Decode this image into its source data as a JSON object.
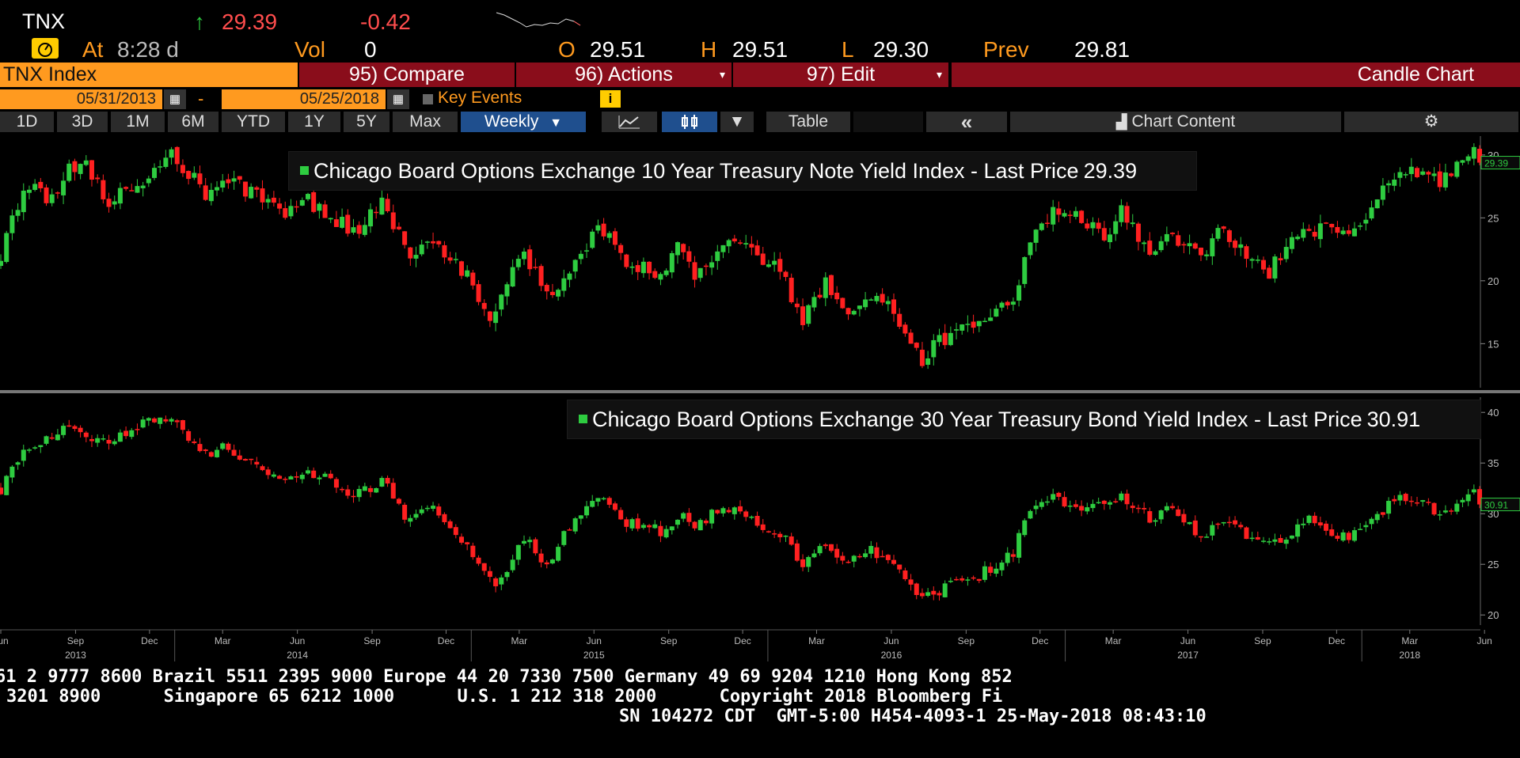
{
  "header": {
    "ticker": "TNX",
    "arrow": "↑",
    "last": "29.39",
    "change": "-0.42",
    "at_label": "At",
    "time": "8:28 d",
    "vol_label": "Vol",
    "vol": "0",
    "open_label": "O",
    "open": "29.51",
    "high_label": "H",
    "high": "29.51",
    "low_label": "L",
    "low": "29.30",
    "prev_label": "Prev",
    "prev": "29.81"
  },
  "toolbar": {
    "security": "TNX Index",
    "compare": "95) Compare",
    "actions": "96) Actions",
    "edit": "97) Edit",
    "chart_type": "Candle Chart",
    "start_date": "05/31/2013",
    "dash": "-",
    "end_date": "05/25/2018",
    "key_events": "Key Events",
    "ranges": [
      "1D",
      "3D",
      "1M",
      "6M",
      "YTD",
      "1Y",
      "5Y",
      "Max"
    ],
    "period": "Weekly",
    "table": "Table",
    "collapse": "«",
    "chart_content": "Chart Content"
  },
  "colors": {
    "up": "#2ecc40",
    "down": "#ff2020",
    "accent": "#ff9a1f",
    "button_red": "#8a0d1b",
    "selected_blue": "#1f4f8e"
  },
  "chart_data": [
    {
      "type": "candlestick",
      "title": "Chicago Board Options Exchange 10 Year Treasury Note Yield Index - Last Price",
      "last_price": "29.39",
      "frequency": "weekly",
      "date_range": [
        "2013-05-31",
        "2018-05-25"
      ],
      "ylim": [
        11.5,
        31.5
      ],
      "yticks": [
        15,
        20,
        25,
        30
      ],
      "ytick_labels": [
        "15",
        "20",
        "25",
        "30"
      ],
      "axis_side": "right",
      "anchors": [
        [
          "2013-06-01",
          21.3
        ],
        [
          "2013-06-15",
          25.5
        ],
        [
          "2013-07-05",
          27.5
        ],
        [
          "2013-08-01",
          26.5
        ],
        [
          "2013-08-23",
          28.8
        ],
        [
          "2013-09-13",
          29.6
        ],
        [
          "2013-10-10",
          26.4
        ],
        [
          "2013-11-08",
          27.0
        ],
        [
          "2013-12-20",
          29.5
        ],
        [
          "2013-12-31",
          30.0
        ],
        [
          "2014-01-20",
          28.4
        ],
        [
          "2014-02-07",
          26.7
        ],
        [
          "2014-03-07",
          27.9
        ],
        [
          "2014-04-11",
          26.7
        ],
        [
          "2014-05-16",
          25.3
        ],
        [
          "2014-06-06",
          26.7
        ],
        [
          "2014-07-18",
          24.8
        ],
        [
          "2014-08-15",
          23.8
        ],
        [
          "2014-09-12",
          26.2
        ],
        [
          "2014-10-15",
          22.1
        ],
        [
          "2014-11-07",
          23.5
        ],
        [
          "2014-12-12",
          21.8
        ],
        [
          "2015-01-30",
          16.8
        ],
        [
          "2015-02-20",
          21.0
        ],
        [
          "2015-03-06",
          22.5
        ],
        [
          "2015-04-03",
          18.8
        ],
        [
          "2015-05-01",
          20.5
        ],
        [
          "2015-06-10",
          24.3
        ],
        [
          "2015-07-08",
          21.8
        ],
        [
          "2015-08-21",
          20.5
        ],
        [
          "2015-09-15",
          22.9
        ],
        [
          "2015-10-02",
          19.9
        ],
        [
          "2015-11-06",
          23.2
        ],
        [
          "2015-12-11",
          22.3
        ],
        [
          "2016-01-22",
          20.5
        ],
        [
          "2016-02-11",
          16.6
        ],
        [
          "2016-03-11",
          19.8
        ],
        [
          "2016-04-08",
          17.2
        ],
        [
          "2016-04-29",
          18.3
        ],
        [
          "2016-05-20",
          18.5
        ],
        [
          "2016-06-24",
          15.6
        ],
        [
          "2016-07-08",
          13.7
        ],
        [
          "2016-07-29",
          15.0
        ],
        [
          "2016-09-09",
          16.8
        ],
        [
          "2016-10-28",
          18.5
        ],
        [
          "2016-11-11",
          21.5
        ],
        [
          "2016-12-16",
          26.0
        ],
        [
          "2017-01-20",
          24.7
        ],
        [
          "2017-02-24",
          23.3
        ],
        [
          "2017-03-10",
          26.0
        ],
        [
          "2017-04-14",
          22.3
        ],
        [
          "2017-05-12",
          23.9
        ],
        [
          "2017-06-16",
          21.6
        ],
        [
          "2017-07-07",
          23.9
        ],
        [
          "2017-08-18",
          21.9
        ],
        [
          "2017-09-08",
          20.6
        ],
        [
          "2017-10-06",
          23.6
        ],
        [
          "2017-11-10",
          24.0
        ],
        [
          "2017-12-08",
          23.7
        ],
        [
          "2018-01-12",
          25.5
        ],
        [
          "2018-02-09",
          28.5
        ],
        [
          "2018-02-23",
          29.0
        ],
        [
          "2018-03-23",
          28.2
        ],
        [
          "2018-04-06",
          27.7
        ],
        [
          "2018-05-04",
          29.5
        ],
        [
          "2018-05-18",
          30.6
        ],
        [
          "2018-05-25",
          29.39
        ]
      ]
    },
    {
      "type": "candlestick",
      "title": "Chicago Board Options Exchange 30 Year Treasury Bond Yield Index - Last Price",
      "last_price": "30.91",
      "frequency": "weekly",
      "date_range": [
        "2013-05-31",
        "2018-05-25"
      ],
      "ylim": [
        19.0,
        41.5
      ],
      "yticks": [
        20,
        25,
        30,
        35,
        40
      ],
      "ytick_labels": [
        "20",
        "25",
        "30",
        "35",
        "40"
      ],
      "axis_side": "right",
      "anchors": [
        [
          "2013-06-01",
          32.5
        ],
        [
          "2013-06-21",
          35.5
        ],
        [
          "2013-07-12",
          37.0
        ],
        [
          "2013-08-09",
          38.0
        ],
        [
          "2013-08-23",
          39.0
        ],
        [
          "2013-09-20",
          37.5
        ],
        [
          "2013-10-11",
          36.8
        ],
        [
          "2013-11-08",
          38.3
        ],
        [
          "2013-12-13",
          39.5
        ],
        [
          "2013-12-31",
          39.2
        ],
        [
          "2014-01-24",
          36.5
        ],
        [
          "2014-02-07",
          36.0
        ],
        [
          "2014-03-07",
          36.5
        ],
        [
          "2014-04-11",
          34.8
        ],
        [
          "2014-05-16",
          33.2
        ],
        [
          "2014-06-06",
          34.3
        ],
        [
          "2014-07-18",
          33.0
        ],
        [
          "2014-08-15",
          31.8
        ],
        [
          "2014-09-12",
          33.3
        ],
        [
          "2014-10-15",
          29.5
        ],
        [
          "2014-11-07",
          30.8
        ],
        [
          "2014-12-12",
          28.3
        ],
        [
          "2015-01-30",
          22.8
        ],
        [
          "2015-02-27",
          26.5
        ],
        [
          "2015-03-13",
          27.5
        ],
        [
          "2015-04-03",
          25.0
        ],
        [
          "2015-05-08",
          29.5
        ],
        [
          "2015-06-10",
          31.8
        ],
        [
          "2015-07-10",
          29.0
        ],
        [
          "2015-08-21",
          28.3
        ],
        [
          "2015-09-15",
          29.8
        ],
        [
          "2015-10-02",
          28.3
        ],
        [
          "2015-11-06",
          30.8
        ],
        [
          "2015-12-11",
          29.3
        ],
        [
          "2016-01-22",
          28.0
        ],
        [
          "2016-02-11",
          25.0
        ],
        [
          "2016-03-11",
          27.0
        ],
        [
          "2016-04-08",
          25.5
        ],
        [
          "2016-05-06",
          26.5
        ],
        [
          "2016-06-10",
          25.0
        ],
        [
          "2016-07-08",
          21.5
        ],
        [
          "2016-07-29",
          22.5
        ],
        [
          "2016-09-09",
          23.5
        ],
        [
          "2016-10-28",
          26.0
        ],
        [
          "2016-11-11",
          29.5
        ],
        [
          "2016-12-16",
          31.8
        ],
        [
          "2017-01-20",
          30.0
        ],
        [
          "2017-03-10",
          31.8
        ],
        [
          "2017-04-14",
          29.5
        ],
        [
          "2017-05-12",
          30.5
        ],
        [
          "2017-06-16",
          27.8
        ],
        [
          "2017-07-07",
          29.0
        ],
        [
          "2017-08-18",
          27.8
        ],
        [
          "2017-09-08",
          27.0
        ],
        [
          "2017-10-27",
          29.3
        ],
        [
          "2017-12-01",
          27.8
        ],
        [
          "2017-12-22",
          28.0
        ],
        [
          "2018-01-19",
          29.5
        ],
        [
          "2018-02-16",
          32.0
        ],
        [
          "2018-03-16",
          31.0
        ],
        [
          "2018-04-06",
          30.0
        ],
        [
          "2018-05-11",
          31.5
        ],
        [
          "2018-05-18",
          32.2
        ],
        [
          "2018-05-25",
          30.91
        ]
      ]
    }
  ],
  "x_axis": {
    "months": [
      {
        "date": "2013-06-01",
        "label": "Jun"
      },
      {
        "date": "2013-09-01",
        "label": "Sep"
      },
      {
        "date": "2013-12-01",
        "label": "Dec"
      },
      {
        "date": "2014-03-01",
        "label": "Mar"
      },
      {
        "date": "2014-06-01",
        "label": "Jun"
      },
      {
        "date": "2014-09-01",
        "label": "Sep"
      },
      {
        "date": "2014-12-01",
        "label": "Dec"
      },
      {
        "date": "2015-03-01",
        "label": "Mar"
      },
      {
        "date": "2015-06-01",
        "label": "Jun"
      },
      {
        "date": "2015-09-01",
        "label": "Sep"
      },
      {
        "date": "2015-12-01",
        "label": "Dec"
      },
      {
        "date": "2016-03-01",
        "label": "Mar"
      },
      {
        "date": "2016-06-01",
        "label": "Jun"
      },
      {
        "date": "2016-09-01",
        "label": "Sep"
      },
      {
        "date": "2016-12-01",
        "label": "Dec"
      },
      {
        "date": "2017-03-01",
        "label": "Mar"
      },
      {
        "date": "2017-06-01",
        "label": "Jun"
      },
      {
        "date": "2017-09-01",
        "label": "Sep"
      },
      {
        "date": "2017-12-01",
        "label": "Dec"
      },
      {
        "date": "2018-03-01",
        "label": "Mar"
      },
      {
        "date": "2018-06-01",
        "label": "Jun"
      }
    ],
    "years": [
      {
        "date": "2013-09-01",
        "label": "2013"
      },
      {
        "date": "2014-06-01",
        "label": "2014"
      },
      {
        "date": "2015-06-01",
        "label": "2015"
      },
      {
        "date": "2016-06-01",
        "label": "2016"
      },
      {
        "date": "2017-06-01",
        "label": "2017"
      },
      {
        "date": "2018-03-01",
        "label": "2018"
      }
    ]
  },
  "footer": {
    "line1": "61 2 9777 8600 Brazil 5511 2395 9000 Europe 44 20 7330 7500 Germany 49 69 9204 1210 Hong Kong 852",
    "line2": "3201 8900      Singapore 65 6212 1000      U.S. 1 212 318 2000      Copyright 2018 Bloomberg Fi",
    "line3": "SN 104272 CDT  GMT-5:00 H454-4093-1 25-May-2018 08:43:10"
  }
}
